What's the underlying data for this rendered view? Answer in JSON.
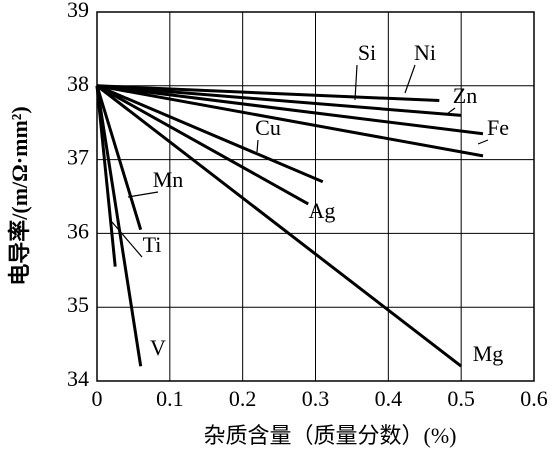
{
  "chart_data": {
    "type": "line",
    "x_label": "杂质含量（质量分数）(%)",
    "y_label": "电导率/(m/Ω·mm²)",
    "xlim": [
      0,
      0.6
    ],
    "xticks": [
      0,
      0.1,
      0.2,
      0.3,
      0.4,
      0.5,
      0.6
    ],
    "ylim": [
      34,
      39
    ],
    "yticks": [
      34,
      35,
      36,
      37,
      38,
      39
    ],
    "grid": true,
    "color": "#000000",
    "series": [
      {
        "name": "Si",
        "x": [
          0,
          0.47
        ],
        "values": [
          38,
          37.8
        ]
      },
      {
        "name": "Ni",
        "x": [
          0,
          0.5
        ],
        "values": [
          38,
          37.6
        ]
      },
      {
        "name": "Zn",
        "x": [
          0,
          0.53
        ],
        "values": [
          38,
          37.35
        ]
      },
      {
        "name": "Fe",
        "x": [
          0,
          0.53
        ],
        "values": [
          38,
          37.05
        ]
      },
      {
        "name": "Cu",
        "x": [
          0,
          0.31
        ],
        "values": [
          38,
          36.7
        ]
      },
      {
        "name": "Ag",
        "x": [
          0,
          0.29
        ],
        "values": [
          38,
          36.4
        ]
      },
      {
        "name": "Mg",
        "x": [
          0,
          0.5
        ],
        "values": [
          38,
          34.2
        ]
      },
      {
        "name": "Mn",
        "x": [
          0,
          0.06
        ],
        "values": [
          38,
          36.05
        ]
      },
      {
        "name": "Ti",
        "x": [
          0,
          0.025
        ],
        "values": [
          38,
          35.55
        ]
      },
      {
        "name": "V",
        "x": [
          0,
          0.06
        ],
        "values": [
          38,
          34.2
        ]
      }
    ]
  }
}
